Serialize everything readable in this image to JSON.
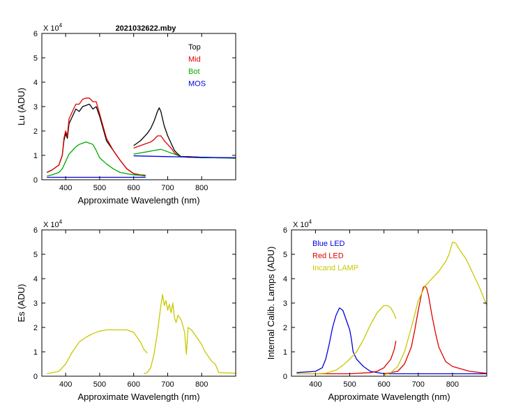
{
  "chart_data": [
    {
      "type": "line",
      "id": "lu",
      "title": "2021032622.mby",
      "xlabel": "Approximate Wavelength (nm)",
      "ylabel": "Lu (ADU)",
      "y_multiplier": "X 10^4",
      "xlim": [
        330,
        900
      ],
      "ylim": [
        0,
        6
      ],
      "xticks": [
        400,
        500,
        600,
        700,
        800
      ],
      "yticks": [
        0,
        1,
        2,
        3,
        4,
        5,
        6
      ],
      "legend": "top-right",
      "series": [
        {
          "name": "Top",
          "color": "#000000",
          "segments": [
            {
              "x": [
                345,
                360,
                380,
                390,
                395,
                400,
                405,
                410,
                420,
                430,
                440,
                450,
                460,
                470,
                480,
                490,
                500,
                510,
                520,
                540,
                560,
                580,
                600,
                620,
                635
              ],
              "y": [
                0.3,
                0.4,
                0.6,
                1.0,
                1.6,
                1.9,
                1.7,
                2.3,
                2.6,
                2.9,
                2.8,
                3.0,
                3.05,
                3.1,
                2.9,
                3.0,
                2.6,
                2.1,
                1.6,
                1.2,
                0.8,
                0.45,
                0.25,
                0.2,
                0.18
              ]
            },
            {
              "x": [
                600,
                610,
                620,
                630,
                640,
                650,
                660,
                670,
                675,
                680,
                685,
                690,
                700,
                710,
                720,
                730,
                740,
                760,
                800,
                850,
                900
              ],
              "y": [
                1.4,
                1.5,
                1.6,
                1.75,
                1.9,
                2.1,
                2.4,
                2.8,
                2.95,
                2.8,
                2.5,
                2.2,
                1.8,
                1.5,
                1.2,
                1.05,
                0.95,
                0.95,
                0.92,
                0.9,
                0.9
              ]
            }
          ]
        },
        {
          "name": "Mid",
          "color": "#e00000",
          "segments": [
            {
              "x": [
                345,
                360,
                380,
                390,
                395,
                400,
                405,
                410,
                420,
                430,
                440,
                450,
                460,
                470,
                480,
                490,
                500,
                510,
                520,
                540,
                560,
                580,
                600,
                620,
                635
              ],
              "y": [
                0.3,
                0.4,
                0.6,
                1.0,
                1.7,
                2.0,
                1.8,
                2.5,
                2.8,
                3.1,
                3.1,
                3.3,
                3.35,
                3.35,
                3.2,
                3.2,
                2.7,
                2.2,
                1.7,
                1.2,
                0.8,
                0.45,
                0.25,
                0.2,
                0.18
              ]
            },
            {
              "x": [
                600,
                620,
                640,
                650,
                660,
                670,
                680,
                690,
                700,
                710,
                720,
                730,
                740,
                760,
                800,
                850,
                900
              ],
              "y": [
                1.3,
                1.4,
                1.5,
                1.55,
                1.65,
                1.8,
                1.8,
                1.6,
                1.45,
                1.3,
                1.1,
                1.0,
                0.95,
                0.95,
                0.92,
                0.9,
                0.9
              ]
            }
          ]
        },
        {
          "name": "Bot",
          "color": "#00aa00",
          "segments": [
            {
              "x": [
                345,
                360,
                380,
                390,
                400,
                410,
                420,
                430,
                440,
                450,
                460,
                470,
                480,
                490,
                500,
                520,
                540,
                560,
                580,
                600,
                620,
                635
              ],
              "y": [
                0.15,
                0.2,
                0.3,
                0.45,
                0.75,
                1.05,
                1.2,
                1.35,
                1.45,
                1.5,
                1.55,
                1.5,
                1.45,
                1.2,
                0.9,
                0.65,
                0.45,
                0.3,
                0.25,
                0.2,
                0.18,
                0.15
              ]
            },
            {
              "x": [
                600,
                620,
                640,
                660,
                680,
                700,
                720,
                740,
                760,
                800,
                850,
                900
              ],
              "y": [
                1.05,
                1.1,
                1.15,
                1.2,
                1.25,
                1.15,
                1.05,
                0.95,
                0.92,
                0.9,
                0.9,
                0.88
              ]
            }
          ]
        },
        {
          "name": "MOS",
          "color": "#0000dd",
          "segments": [
            {
              "x": [
                345,
                400,
                500,
                600,
                635
              ],
              "y": [
                0.1,
                0.1,
                0.1,
                0.1,
                0.1
              ]
            },
            {
              "x": [
                600,
                700,
                800,
                900
              ],
              "y": [
                0.98,
                0.95,
                0.92,
                0.9
              ]
            }
          ]
        }
      ]
    },
    {
      "type": "line",
      "id": "es",
      "title": "",
      "xlabel": "Approximate Wavelength (nm)",
      "ylabel": "Es  (ADU)",
      "y_multiplier": "X 10^4",
      "xlim": [
        330,
        900
      ],
      "ylim": [
        0,
        6
      ],
      "xticks": [
        400,
        500,
        600,
        700,
        800
      ],
      "yticks": [
        0,
        1,
        2,
        3,
        4,
        5,
        6
      ],
      "series": [
        {
          "name": "",
          "color": "#c8c800",
          "segments": [
            {
              "x": [
                345,
                380,
                400,
                420,
                440,
                460,
                480,
                500,
                520,
                540,
                560,
                580,
                600,
                620,
                630,
                640
              ],
              "y": [
                0.1,
                0.2,
                0.5,
                1.0,
                1.4,
                1.6,
                1.75,
                1.85,
                1.9,
                1.9,
                1.9,
                1.9,
                1.8,
                1.4,
                1.1,
                0.95
              ]
            },
            {
              "x": [
                630,
                640,
                650,
                660,
                670,
                680,
                685,
                690,
                695,
                700,
                705,
                710,
                715,
                720,
                725,
                730,
                740,
                750,
                755,
                760,
                770,
                780,
                790,
                800,
                810,
                820,
                830,
                840,
                850,
                900
              ],
              "y": [
                0.1,
                0.15,
                0.35,
                0.9,
                1.8,
                2.9,
                3.35,
                2.9,
                3.1,
                2.7,
                2.95,
                2.6,
                3.0,
                2.4,
                2.2,
                2.5,
                2.3,
                1.8,
                0.9,
                2.0,
                1.9,
                1.7,
                1.5,
                1.3,
                1.0,
                0.8,
                0.6,
                0.5,
                0.15,
                0.12
              ]
            }
          ]
        }
      ]
    },
    {
      "type": "line",
      "id": "lamps",
      "title": "",
      "xlabel": "Approximate Wavelength (nm)",
      "ylabel": "Internal Calib. Lamps  (ADU)",
      "y_multiplier": "X 10^4",
      "xlim": [
        330,
        900
      ],
      "ylim": [
        0,
        6
      ],
      "xticks": [
        400,
        500,
        600,
        700,
        800
      ],
      "yticks": [
        0,
        1,
        2,
        3,
        4,
        5,
        6
      ],
      "legend": "top-left",
      "series": [
        {
          "name": "Blue LED",
          "color": "#0000dd",
          "segments": [
            {
              "x": [
                345,
                400,
                420,
                430,
                440,
                450,
                460,
                470,
                480,
                490,
                500,
                505,
                510,
                520,
                530,
                540,
                560,
                600,
                700,
                800,
                900
              ],
              "y": [
                0.15,
                0.2,
                0.35,
                0.7,
                1.3,
                2.0,
                2.5,
                2.8,
                2.7,
                2.3,
                1.9,
                1.5,
                1.0,
                0.7,
                0.55,
                0.4,
                0.2,
                0.1,
                0.1,
                0.1,
                0.1
              ]
            }
          ]
        },
        {
          "name": "Red LED",
          "color": "#dd0000",
          "segments": [
            {
              "x": [
                345,
                500,
                560,
                580,
                600,
                620,
                630,
                635
              ],
              "y": [
                0.1,
                0.1,
                0.15,
                0.2,
                0.35,
                0.7,
                1.1,
                1.45
              ]
            },
            {
              "x": [
                600,
                640,
                660,
                680,
                690,
                700,
                710,
                715,
                720,
                725,
                730,
                740,
                750,
                760,
                780,
                800,
                850,
                900
              ],
              "y": [
                0.1,
                0.2,
                0.5,
                1.2,
                1.9,
                2.7,
                3.4,
                3.65,
                3.7,
                3.6,
                3.3,
                2.5,
                1.8,
                1.2,
                0.6,
                0.4,
                0.2,
                0.12
              ]
            }
          ]
        },
        {
          "name": "Incand LAMP",
          "color": "#c8c800",
          "segments": [
            {
              "x": [
                345,
                400,
                430,
                460,
                480,
                500,
                520,
                540,
                560,
                580,
                600,
                610,
                620,
                630,
                635
              ],
              "y": [
                0.1,
                0.1,
                0.12,
                0.25,
                0.45,
                0.7,
                1.0,
                1.5,
                2.1,
                2.6,
                2.9,
                2.9,
                2.8,
                2.55,
                2.35
              ]
            },
            {
              "x": [
                600,
                620,
                640,
                660,
                680,
                700,
                720,
                740,
                760,
                780,
                790,
                800,
                810,
                820,
                840,
                860,
                880,
                900
              ],
              "y": [
                0.05,
                0.15,
                0.4,
                1.0,
                2.0,
                3.1,
                3.7,
                4.0,
                4.3,
                4.7,
                5.0,
                5.5,
                5.45,
                5.2,
                4.8,
                4.2,
                3.6,
                2.9
              ]
            }
          ]
        }
      ]
    }
  ]
}
